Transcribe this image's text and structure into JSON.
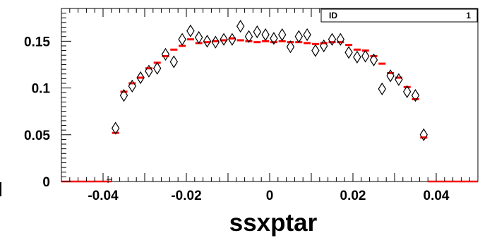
{
  "chart_data": {
    "type": "scatter",
    "xlabel": "ssxptar",
    "ylabel": "",
    "xlim": [
      -0.05,
      0.05
    ],
    "ylim": [
      0,
      0.185
    ],
    "x_ticks": [
      -0.04,
      -0.02,
      0,
      0.02,
      0.04
    ],
    "x_tick_labels": [
      "-0.04",
      "-0.02",
      "0",
      "0.02",
      "0.04"
    ],
    "y_ticks": [
      0,
      0.05,
      0.1,
      0.15
    ],
    "y_tick_labels": [
      "0",
      "0.05",
      "0.1",
      "0.15"
    ],
    "stats_box": {
      "name_label": "ID",
      "value_label": "1"
    },
    "colors": {
      "histogram": "#ff0000",
      "markers": "#000000"
    },
    "series": [
      {
        "style": "red-horizontal-bins",
        "bin_width": 0.002,
        "x": [
          -0.037,
          -0.035,
          -0.033,
          -0.031,
          -0.029,
          -0.027,
          -0.025,
          -0.023,
          -0.021,
          -0.019,
          -0.017,
          -0.015,
          -0.013,
          -0.011,
          -0.009,
          -0.007,
          -0.005,
          -0.003,
          -0.001,
          0.001,
          0.003,
          0.005,
          0.007,
          0.009,
          0.011,
          0.013,
          0.015,
          0.017,
          0.019,
          0.021,
          0.023,
          0.025,
          0.027,
          0.029,
          0.031,
          0.033,
          0.035,
          0.037
        ],
        "y": [
          0.052,
          0.096,
          0.105,
          0.111,
          0.121,
          0.127,
          0.134,
          0.141,
          0.145,
          0.152,
          0.148,
          0.149,
          0.15,
          0.151,
          0.153,
          0.151,
          0.15,
          0.149,
          0.15,
          0.149,
          0.15,
          0.149,
          0.149,
          0.148,
          0.147,
          0.148,
          0.149,
          0.149,
          0.146,
          0.141,
          0.14,
          0.134,
          0.126,
          0.116,
          0.111,
          0.101,
          0.088,
          0.047
        ]
      },
      {
        "style": "open-diamond-markers",
        "x": [
          -0.037,
          -0.035,
          -0.033,
          -0.031,
          -0.029,
          -0.027,
          -0.025,
          -0.023,
          -0.021,
          -0.019,
          -0.017,
          -0.015,
          -0.013,
          -0.011,
          -0.009,
          -0.007,
          -0.005,
          -0.003,
          -0.001,
          0.001,
          0.003,
          0.005,
          0.007,
          0.009,
          0.011,
          0.013,
          0.015,
          0.017,
          0.019,
          0.021,
          0.023,
          0.025,
          0.027,
          0.029,
          0.031,
          0.033,
          0.035,
          0.037
        ],
        "y": [
          0.057,
          0.092,
          0.102,
          0.111,
          0.118,
          0.121,
          0.136,
          0.128,
          0.152,
          0.161,
          0.154,
          0.15,
          0.149,
          0.152,
          0.152,
          0.166,
          0.155,
          0.16,
          0.157,
          0.153,
          0.157,
          0.144,
          0.155,
          0.157,
          0.14,
          0.145,
          0.152,
          0.152,
          0.138,
          0.133,
          0.134,
          0.13,
          0.099,
          0.113,
          0.109,
          0.096,
          0.092,
          0.05
        ]
      }
    ]
  }
}
